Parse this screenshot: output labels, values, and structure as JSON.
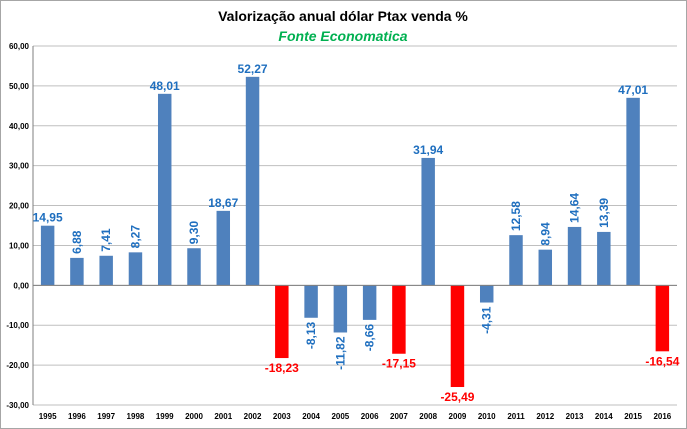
{
  "chart_data": {
    "type": "bar",
    "title": "Valorização anual dólar Ptax venda %",
    "subtitle": "Fonte Economatica",
    "xlabel": "",
    "ylabel": "",
    "ylim": [
      -30,
      60
    ],
    "yticks": [
      "60,00",
      "50,00",
      "40,00",
      "30,00",
      "20,00",
      "10,00",
      "0,00",
      "-10,00",
      "-20,00",
      "-30,00"
    ],
    "ytick_values": [
      60,
      50,
      40,
      30,
      20,
      10,
      0,
      -10,
      -20,
      -30
    ],
    "grid": true,
    "categories": [
      "1995",
      "1996",
      "1997",
      "1998",
      "1999",
      "2000",
      "2001",
      "2002",
      "2003",
      "2004",
      "2005",
      "2006",
      "2007",
      "2008",
      "2009",
      "2010",
      "2011",
      "2012",
      "2013",
      "2014",
      "2015",
      "2016"
    ],
    "values": [
      14.95,
      6.88,
      7.41,
      8.27,
      48.01,
      9.3,
      18.67,
      52.27,
      -18.23,
      -8.13,
      -11.82,
      -8.66,
      -17.15,
      31.94,
      -25.49,
      -4.31,
      12.58,
      8.94,
      14.64,
      13.39,
      47.01,
      -16.54
    ],
    "value_labels": [
      "14,95",
      "6,88",
      "7,41",
      "8,27",
      "48,01",
      "9,30",
      "18,67",
      "52,27",
      "-18,23",
      "-8,13",
      "-11,82",
      "-8,66",
      "-17,15",
      "31,94",
      "-25,49",
      "-4,31",
      "12,58",
      "8,94",
      "14,64",
      "13,39",
      "47,01",
      "-16,54"
    ],
    "highlight": [
      false,
      false,
      false,
      false,
      false,
      false,
      false,
      false,
      true,
      false,
      false,
      false,
      true,
      false,
      true,
      false,
      false,
      false,
      false,
      false,
      false,
      true
    ],
    "colors": {
      "bar": "#4f81bd",
      "bar_highlight": "#ff0000",
      "label": "#1f6fbf",
      "label_highlight": "#ff0000",
      "subtitle": "#00b050"
    }
  }
}
